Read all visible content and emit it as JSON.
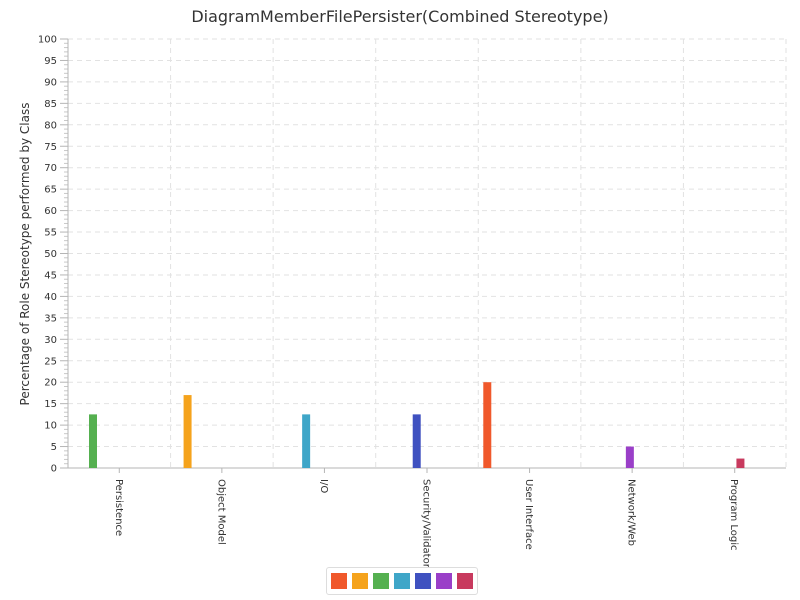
{
  "chart_data": {
    "type": "bar",
    "title": "DiagramMemberFilePersister(Combined Stereotype)",
    "xlabel": "",
    "ylabel": "Percentage of Role Stereotype performed by Class",
    "ylim": [
      0,
      100
    ],
    "yticks": [
      "0",
      "5",
      "10",
      "15",
      "20",
      "25",
      "30",
      "35",
      "40",
      "45",
      "50",
      "55",
      "60",
      "65",
      "70",
      "75",
      "80",
      "85",
      "90",
      "95",
      "100"
    ],
    "grid": true,
    "legend_position": "bottom",
    "categories": [
      "Persistence",
      "Object Model",
      "I/O",
      "Security/Validator",
      "User Interface",
      "Network/Web",
      "Program Logic"
    ],
    "series": [
      {
        "color": "#f0582b",
        "values": [
          0,
          0,
          0,
          0,
          20,
          0,
          0
        ]
      },
      {
        "color": "#f5a31c",
        "values": [
          0,
          17,
          0,
          0,
          0,
          0,
          0
        ]
      },
      {
        "color": "#55b050",
        "values": [
          12.5,
          0,
          0,
          0,
          0,
          0,
          0
        ]
      },
      {
        "color": "#3fa6c8",
        "values": [
          0,
          0,
          12.5,
          0,
          0,
          0,
          0
        ]
      },
      {
        "color": "#3f51c0",
        "values": [
          0,
          0,
          0,
          12.5,
          0,
          0,
          0
        ]
      },
      {
        "color": "#9a3fc8",
        "values": [
          0,
          0,
          0,
          0,
          0,
          5,
          0
        ]
      },
      {
        "color": "#c83a5e",
        "values": [
          0,
          0,
          0,
          0,
          0,
          0,
          2.2
        ]
      }
    ]
  }
}
